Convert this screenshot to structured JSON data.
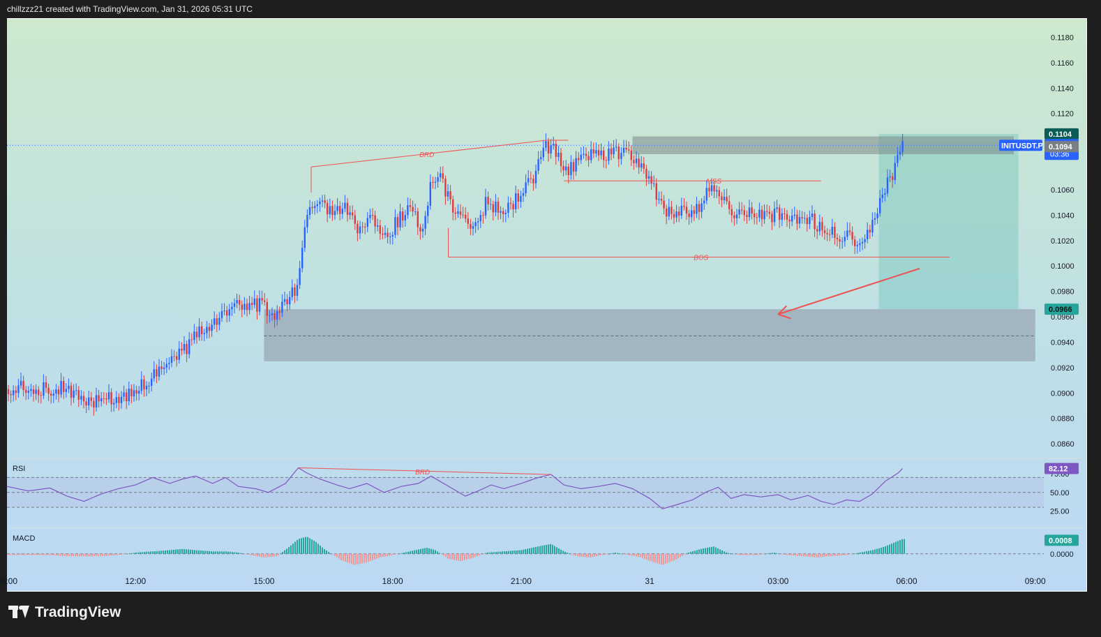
{
  "header": {
    "caption": "chillzzz21 created with TradingView.com, Jan 31, 2026 05:31 UTC"
  },
  "footer": {
    "brand": "TradingView"
  },
  "colors": {
    "up": "#2962ff",
    "down": "#e03a3e",
    "annotation": "#f05050",
    "rsi": "#7e57c2",
    "macd_up": "#26a69a",
    "macd_down": "#ef9a9a",
    "last_price": "#2962ff",
    "target": "#26a69a"
  },
  "chart_data": {
    "type": "candlestick",
    "symbol": "INITUSDT.P",
    "price_axis": {
      "ylim": [
        0.0848,
        0.1194
      ],
      "ticks": [
        "0.1180",
        "0.1160",
        "0.1140",
        "0.1120",
        "0.1060",
        "0.1040",
        "0.1020",
        "0.1000",
        "0.0980",
        "0.0960",
        "0.0940",
        "0.0920",
        "0.0900",
        "0.0880",
        "0.0860"
      ]
    },
    "time_axis": {
      "xlim": [
        9.0,
        33.2
      ],
      "ticks": [
        {
          "t": 9,
          "label": "09:00"
        },
        {
          "t": 12,
          "label": "12:00"
        },
        {
          "t": 15,
          "label": "15:00"
        },
        {
          "t": 18,
          "label": "18:00"
        },
        {
          "t": 21,
          "label": "21:00"
        },
        {
          "t": 24,
          "label": "31"
        },
        {
          "t": 27,
          "label": "03:00"
        },
        {
          "t": 30,
          "label": "06:00"
        },
        {
          "t": 33,
          "label": "09:00"
        },
        {
          "t": 36,
          "label": "12:00"
        },
        {
          "t": 39,
          "label": "15:00"
        }
      ]
    },
    "price_path": [
      [
        9.0,
        0.0903
      ],
      [
        9.4,
        0.0904
      ],
      [
        9.9,
        0.0903
      ],
      [
        10.3,
        0.0904
      ],
      [
        10.6,
        0.09
      ],
      [
        10.9,
        0.0894
      ],
      [
        11.3,
        0.0895
      ],
      [
        11.6,
        0.0896
      ],
      [
        12.0,
        0.0902
      ],
      [
        12.4,
        0.0912
      ],
      [
        12.8,
        0.0925
      ],
      [
        13.1,
        0.0932
      ],
      [
        13.4,
        0.0945
      ],
      [
        13.8,
        0.0955
      ],
      [
        14.1,
        0.0962
      ],
      [
        14.3,
        0.0973
      ],
      [
        14.6,
        0.0967
      ],
      [
        14.9,
        0.097
      ],
      [
        15.2,
        0.0962
      ],
      [
        15.5,
        0.097
      ],
      [
        15.8,
        0.0985
      ],
      [
        16.0,
        0.104
      ],
      [
        16.3,
        0.1055
      ],
      [
        16.6,
        0.104
      ],
      [
        16.9,
        0.1045
      ],
      [
        17.2,
        0.103
      ],
      [
        17.5,
        0.104
      ],
      [
        17.8,
        0.102
      ],
      [
        18.1,
        0.1035
      ],
      [
        18.4,
        0.1045
      ],
      [
        18.7,
        0.103
      ],
      [
        18.9,
        0.1065
      ],
      [
        19.1,
        0.1072
      ],
      [
        19.3,
        0.1055
      ],
      [
        19.5,
        0.104
      ],
      [
        19.8,
        0.103
      ],
      [
        20.0,
        0.104
      ],
      [
        20.2,
        0.105
      ],
      [
        20.5,
        0.1045
      ],
      [
        20.8,
        0.105
      ],
      [
        21.1,
        0.106
      ],
      [
        21.3,
        0.107
      ],
      [
        21.6,
        0.1095
      ],
      [
        21.8,
        0.1092
      ],
      [
        22.0,
        0.1075
      ],
      [
        22.3,
        0.1082
      ],
      [
        22.6,
        0.1086
      ],
      [
        23.0,
        0.1088
      ],
      [
        23.3,
        0.109
      ],
      [
        23.6,
        0.1084
      ],
      [
        24.0,
        0.107
      ],
      [
        24.2,
        0.105
      ],
      [
        24.5,
        0.104
      ],
      [
        24.8,
        0.1042
      ],
      [
        25.1,
        0.1045
      ],
      [
        25.4,
        0.106
      ],
      [
        25.6,
        0.1062
      ],
      [
        25.8,
        0.1045
      ],
      [
        26.1,
        0.104
      ],
      [
        26.4,
        0.1042
      ],
      [
        26.8,
        0.104
      ],
      [
        27.1,
        0.1043
      ],
      [
        27.4,
        0.1035
      ],
      [
        27.7,
        0.1038
      ],
      [
        28.0,
        0.103
      ],
      [
        28.3,
        0.1025
      ],
      [
        28.6,
        0.1022
      ],
      [
        28.9,
        0.102
      ],
      [
        29.1,
        0.1025
      ],
      [
        29.3,
        0.104
      ],
      [
        29.5,
        0.106
      ],
      [
        29.7,
        0.1075
      ],
      [
        29.8,
        0.1085
      ],
      [
        29.9,
        0.1095
      ]
    ],
    "last_price": {
      "value": "0.1095",
      "countdown": "03:36"
    },
    "price_labels": {
      "target_top": "0.1104",
      "entry": "0.1094",
      "target_low": "0.0966"
    },
    "annotations": [
      {
        "text": "BRD"
      },
      {
        "text": "MSS"
      },
      {
        "text": "BOS"
      }
    ],
    "rsi": {
      "label": "RSI",
      "value": "82.12",
      "ylim": [
        18,
        90
      ],
      "ticks": [
        "75.00",
        "50.00",
        "25.00"
      ],
      "path": [
        [
          9.0,
          58
        ],
        [
          9.5,
          52
        ],
        [
          10.0,
          56
        ],
        [
          10.4,
          45
        ],
        [
          10.8,
          38
        ],
        [
          11.2,
          48
        ],
        [
          11.6,
          55
        ],
        [
          12.0,
          60
        ],
        [
          12.4,
          70
        ],
        [
          12.8,
          62
        ],
        [
          13.1,
          68
        ],
        [
          13.4,
          72
        ],
        [
          13.8,
          62
        ],
        [
          14.1,
          70
        ],
        [
          14.4,
          58
        ],
        [
          14.8,
          55
        ],
        [
          15.1,
          50
        ],
        [
          15.5,
          62
        ],
        [
          15.8,
          83
        ],
        [
          16.0,
          76
        ],
        [
          16.3,
          68
        ],
        [
          16.7,
          60
        ],
        [
          17.0,
          55
        ],
        [
          17.4,
          62
        ],
        [
          17.8,
          50
        ],
        [
          18.2,
          58
        ],
        [
          18.6,
          62
        ],
        [
          18.9,
          72
        ],
        [
          19.1,
          65
        ],
        [
          19.4,
          55
        ],
        [
          19.7,
          45
        ],
        [
          20.0,
          52
        ],
        [
          20.3,
          60
        ],
        [
          20.6,
          55
        ],
        [
          21.0,
          62
        ],
        [
          21.4,
          70
        ],
        [
          21.7,
          74
        ],
        [
          22.0,
          60
        ],
        [
          22.4,
          55
        ],
        [
          22.8,
          58
        ],
        [
          23.2,
          62
        ],
        [
          23.6,
          55
        ],
        [
          24.0,
          42
        ],
        [
          24.3,
          28
        ],
        [
          24.6,
          33
        ],
        [
          25.0,
          40
        ],
        [
          25.3,
          50
        ],
        [
          25.6,
          57
        ],
        [
          25.9,
          42
        ],
        [
          26.2,
          47
        ],
        [
          26.6,
          44
        ],
        [
          27.0,
          47
        ],
        [
          27.3,
          40
        ],
        [
          27.7,
          46
        ],
        [
          28.0,
          38
        ],
        [
          28.3,
          34
        ],
        [
          28.6,
          40
        ],
        [
          28.9,
          38
        ],
        [
          29.2,
          48
        ],
        [
          29.5,
          65
        ],
        [
          29.8,
          76
        ],
        [
          29.9,
          82
        ]
      ]
    },
    "macd": {
      "label": "MACD",
      "value": "0.0008",
      "zero_label": "0.0000",
      "ylim": [
        -0.0012,
        0.0018
      ],
      "hist": [
        [
          9.2,
          -0.0001
        ],
        [
          9.6,
          -0.0001
        ],
        [
          10.0,
          -0.0001
        ],
        [
          10.4,
          -0.0002
        ],
        [
          10.8,
          -0.0002
        ],
        [
          11.2,
          -0.0002
        ],
        [
          11.6,
          -0.0001
        ],
        [
          12.0,
          0.0001
        ],
        [
          12.4,
          0.0002
        ],
        [
          12.8,
          0.0003
        ],
        [
          13.1,
          0.0004
        ],
        [
          13.4,
          0.0003
        ],
        [
          13.8,
          0.0002
        ],
        [
          14.1,
          0.0002
        ],
        [
          14.4,
          0.0001
        ],
        [
          14.7,
          -0.0001
        ],
        [
          15.0,
          -0.0003
        ],
        [
          15.3,
          -0.0002
        ],
        [
          15.6,
          0.0006
        ],
        [
          15.8,
          0.0012
        ],
        [
          16.0,
          0.0014
        ],
        [
          16.2,
          0.001
        ],
        [
          16.4,
          0.0004
        ],
        [
          16.8,
          -0.0005
        ],
        [
          17.1,
          -0.0009
        ],
        [
          17.4,
          -0.0007
        ],
        [
          17.7,
          -0.0003
        ],
        [
          18.0,
          -0.0001
        ],
        [
          18.4,
          0.0002
        ],
        [
          18.8,
          0.0005
        ],
        [
          19.0,
          0.0003
        ],
        [
          19.3,
          -0.0004
        ],
        [
          19.6,
          -0.0006
        ],
        [
          19.9,
          -0.0003
        ],
        [
          20.2,
          0.0001
        ],
        [
          20.6,
          0.0002
        ],
        [
          21.0,
          0.0003
        ],
        [
          21.4,
          0.0006
        ],
        [
          21.7,
          0.0008
        ],
        [
          22.0,
          0.0002
        ],
        [
          22.3,
          -0.0002
        ],
        [
          22.6,
          -0.0003
        ],
        [
          22.9,
          -0.0001
        ],
        [
          23.2,
          0.0001
        ],
        [
          23.5,
          -0.0001
        ],
        [
          23.8,
          -0.0003
        ],
        [
          24.1,
          -0.0007
        ],
        [
          24.3,
          -0.0009
        ],
        [
          24.6,
          -0.0005
        ],
        [
          24.9,
          0.0001
        ],
        [
          25.2,
          0.0004
        ],
        [
          25.5,
          0.0006
        ],
        [
          25.8,
          0.0001
        ],
        [
          26.1,
          -0.0001
        ],
        [
          26.5,
          -0.0001
        ],
        [
          26.9,
          0.0001
        ],
        [
          27.2,
          -0.0001
        ],
        [
          27.6,
          -0.0002
        ],
        [
          27.9,
          -0.0003
        ],
        [
          28.2,
          -0.0002
        ],
        [
          28.6,
          -0.0001
        ],
        [
          28.9,
          0.0001
        ],
        [
          29.2,
          0.0003
        ],
        [
          29.5,
          0.0006
        ],
        [
          29.7,
          0.0009
        ],
        [
          29.9,
          0.0012
        ]
      ]
    }
  }
}
